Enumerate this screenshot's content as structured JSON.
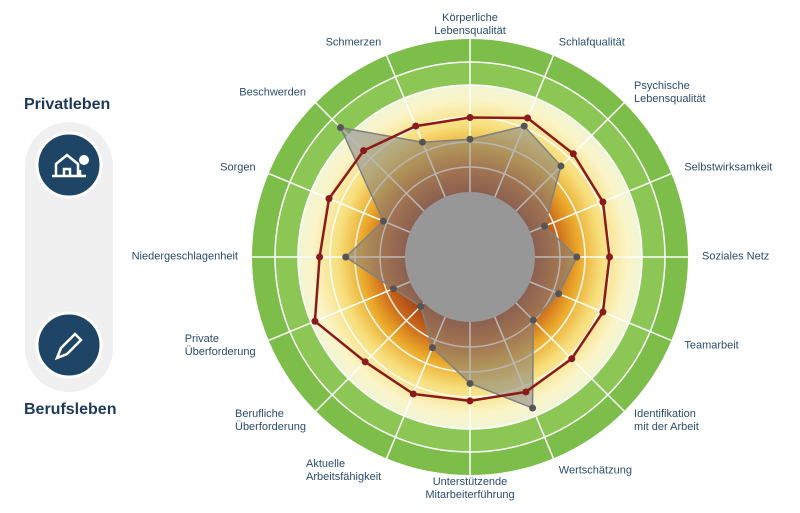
{
  "sidebar": {
    "top_label": "Privatleben",
    "bottom_label": "Berufsleben"
  },
  "chart_data": {
    "type": "radar",
    "categories": [
      "Körperliche\nLebensqualität",
      "Schlafqualität",
      "Psychische\nLebensqualität",
      "Selbstwirksamkeit",
      "Soziales Netz",
      "Teamarbeit",
      "Identifikation\nmit der Arbeit",
      "Wertschätzung",
      "Unterstützende\nMitarbeiterführung",
      "Aktuelle\nArbeitsfähigkeit",
      "Berufliche\nÜberforderung",
      "Private\nÜberforderung",
      "Niedergeschlagenheit",
      "Sorgen",
      "Beschwerden",
      "Schmerzen"
    ],
    "series": [
      {
        "color": "#808080",
        "values": [
          54,
          65,
          59,
          37,
          49,
          44,
          41,
          75,
          58,
          45,
          32,
          38,
          57,
          43,
          84,
          57
        ]
      },
      {
        "color": "#8b1a1a",
        "values": [
          64,
          69,
          67,
          66,
          64,
          66,
          66,
          67,
          66,
          68,
          68,
          77,
          69,
          70,
          69,
          65
        ]
      }
    ],
    "rlim": [
      0,
      100
    ]
  }
}
